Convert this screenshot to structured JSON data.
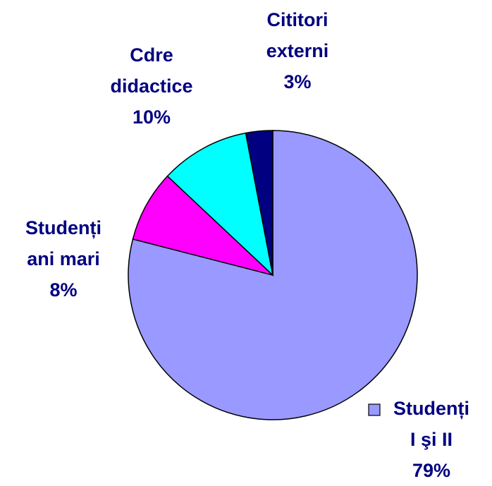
{
  "chart_data": {
    "type": "pie",
    "categories": [
      "Studenți\nI şi II",
      "Studenți\nani mari",
      "Cdre\ndidactice",
      "Cititori\nexterni"
    ],
    "values": [
      79,
      8,
      10,
      3
    ],
    "value_labels": [
      "79%",
      "8%",
      "10%",
      "3%"
    ],
    "colors": [
      "#9999ff",
      "#ff00ff",
      "#00ffff",
      "#000080"
    ]
  }
}
